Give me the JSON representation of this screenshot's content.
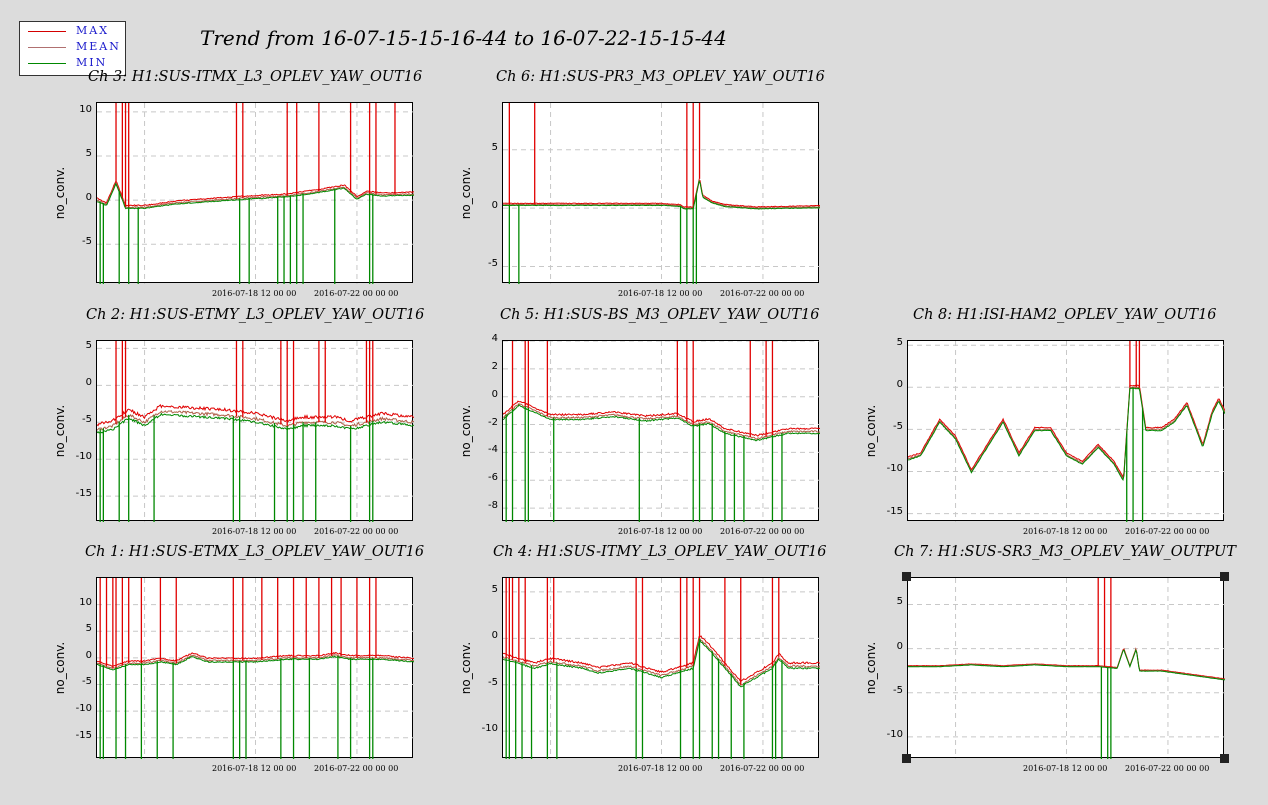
{
  "main_title": "Trend from 16-07-15-15-16-44 to 16-07-22-15-15-44",
  "legend": [
    {
      "label": "MAX",
      "color": "#d40000"
    },
    {
      "label": "MEAN",
      "color": "#a05a5a"
    },
    {
      "label": "MIN",
      "color": "#008800"
    }
  ],
  "colors": {
    "max": "#e00000",
    "mean": "#b0604a",
    "min": "#008800",
    "grid": "#c8c8c8"
  },
  "chart_data": [
    {
      "type": "line",
      "title": "Ch 3: H1:SUS-ITMX_L3_OPLEV_YAW_OUT16",
      "ylabel": "no_conv.",
      "yticks": [
        10,
        5,
        0,
        -5
      ],
      "ylim": [
        -9.5,
        11
      ],
      "xticks": [
        "2016-07-18 12 00 00",
        "2016-07-22 00 00 00"
      ],
      "series": [
        {
          "name": "MAX"
        },
        {
          "name": "MEAN"
        },
        {
          "name": "MIN"
        }
      ],
      "trend": [
        [
          0,
          0
        ],
        [
          0.03,
          -0.5
        ],
        [
          0.06,
          2
        ],
        [
          0.09,
          -0.8
        ],
        [
          0.15,
          -0.8
        ],
        [
          0.25,
          -0.3
        ],
        [
          0.45,
          0.2
        ],
        [
          0.6,
          0.5
        ],
        [
          0.7,
          1
        ],
        [
          0.78,
          1.5
        ],
        [
          0.82,
          0.2
        ],
        [
          0.85,
          0.8
        ],
        [
          0.9,
          0.6
        ],
        [
          1,
          0.7
        ]
      ],
      "spikes_max": [
        0.06,
        0.08,
        0.09,
        0.1,
        0.44,
        0.46,
        0.6,
        0.63,
        0.7,
        0.8,
        0.86,
        0.88,
        0.94
      ],
      "spikes_min": [
        0.01,
        0.02,
        0.07,
        0.1,
        0.13,
        0.45,
        0.48,
        0.57,
        0.59,
        0.61,
        0.63,
        0.65,
        0.75,
        0.86,
        0.87
      ],
      "band": 0.3
    },
    {
      "type": "line",
      "title": "Ch 6: H1:SUS-PR3_M3_OPLEV_YAW_OUT16",
      "ylabel": "no_conv.",
      "yticks": [
        5,
        0,
        -5
      ],
      "ylim": [
        -6.5,
        9
      ],
      "xticks": [
        "2016-07-18 12 00 00",
        "2016-07-22 00 00 00"
      ],
      "series": [
        {
          "name": "MAX"
        },
        {
          "name": "MEAN"
        },
        {
          "name": "MIN"
        }
      ],
      "trend": [
        [
          0,
          0.3
        ],
        [
          0.1,
          0.3
        ],
        [
          0.3,
          0.3
        ],
        [
          0.5,
          0.3
        ],
        [
          0.56,
          0.2
        ],
        [
          0.57,
          0
        ],
        [
          0.6,
          0
        ],
        [
          0.62,
          2.5
        ],
        [
          0.63,
          1
        ],
        [
          0.66,
          0.5
        ],
        [
          0.7,
          0.2
        ],
        [
          0.8,
          0
        ],
        [
          1,
          0.1
        ]
      ],
      "spikes_max": [
        0.02,
        0.1,
        0.58,
        0.6,
        0.62
      ],
      "spikes_min": [
        0.02,
        0.05,
        0.56,
        0.58,
        0.6,
        0.61
      ],
      "band": 0.15
    },
    {
      "type": "line",
      "title": "Ch 2: H1:SUS-ETMY_L3_OPLEV_YAW_OUT16",
      "ylabel": "no_conv.",
      "yticks": [
        5,
        0,
        -5,
        -10,
        -15
      ],
      "ylim": [
        -18.5,
        6
      ],
      "xticks": [
        "2016-07-18 12 00 00",
        "2016-07-22 00 00 00"
      ],
      "series": [
        {
          "name": "MAX"
        },
        {
          "name": "MEAN"
        },
        {
          "name": "MIN"
        }
      ],
      "trend": [
        [
          0,
          -6
        ],
        [
          0.05,
          -5.5
        ],
        [
          0.1,
          -4
        ],
        [
          0.15,
          -5
        ],
        [
          0.2,
          -3.5
        ],
        [
          0.4,
          -4
        ],
        [
          0.5,
          -4.5
        ],
        [
          0.55,
          -5
        ],
        [
          0.6,
          -5.5
        ],
        [
          0.65,
          -5
        ],
        [
          0.7,
          -5
        ],
        [
          0.75,
          -5
        ],
        [
          0.8,
          -5.5
        ],
        [
          0.85,
          -5
        ],
        [
          0.9,
          -4.5
        ],
        [
          1,
          -5
        ]
      ],
      "spikes_max": [
        0.06,
        0.08,
        0.09,
        0.44,
        0.46,
        0.58,
        0.6,
        0.62,
        0.7,
        0.72,
        0.85,
        0.86,
        0.87
      ],
      "spikes_min": [
        0.01,
        0.02,
        0.07,
        0.1,
        0.18,
        0.43,
        0.45,
        0.56,
        0.6,
        0.62,
        0.65,
        0.69,
        0.8,
        0.86,
        0.87
      ],
      "band": 1.0
    },
    {
      "type": "line",
      "title": "Ch 5: H1:SUS-BS_M3_OPLEV_YAW_OUT16",
      "ylabel": "no_conv.",
      "yticks": [
        4,
        2,
        0,
        -2,
        -4,
        -6,
        -8
      ],
      "ylim": [
        -9,
        4
      ],
      "xticks": [
        "2016-07-18 12 00 00",
        "2016-07-22 00 00 00"
      ],
      "series": [
        {
          "name": "MAX"
        },
        {
          "name": "MEAN"
        },
        {
          "name": "MIN"
        }
      ],
      "trend": [
        [
          0,
          -1.5
        ],
        [
          0.05,
          -0.5
        ],
        [
          0.1,
          -1
        ],
        [
          0.15,
          -1.5
        ],
        [
          0.25,
          -1.5
        ],
        [
          0.35,
          -1.3
        ],
        [
          0.45,
          -1.6
        ],
        [
          0.55,
          -1.4
        ],
        [
          0.6,
          -2
        ],
        [
          0.65,
          -1.8
        ],
        [
          0.7,
          -2.5
        ],
        [
          0.8,
          -3
        ],
        [
          0.9,
          -2.5
        ],
        [
          1,
          -2.5
        ]
      ],
      "spikes_max": [
        0.03,
        0.07,
        0.08,
        0.14,
        0.55,
        0.58,
        0.6,
        0.78,
        0.83,
        0.85
      ],
      "spikes_min": [
        0.01,
        0.03,
        0.07,
        0.08,
        0.16,
        0.43,
        0.6,
        0.62,
        0.66,
        0.7,
        0.73,
        0.76,
        0.85,
        0.88
      ],
      "band": 0.3
    },
    {
      "type": "line",
      "title": "Ch 8: H1:ISI-HAM2_OPLEV_YAW_OUT16",
      "ylabel": "no_conv.",
      "yticks": [
        5,
        0,
        -5,
        -10,
        -15
      ],
      "ylim": [
        -16,
        5.5
      ],
      "xticks": [
        "2016-07-18 12 00 00",
        "2016-07-22 00 00 00"
      ],
      "series": [
        {
          "name": "MAX"
        },
        {
          "name": "MEAN"
        },
        {
          "name": "MIN"
        }
      ],
      "trend": [
        [
          0,
          -8.5
        ],
        [
          0.04,
          -8
        ],
        [
          0.1,
          -4
        ],
        [
          0.15,
          -6
        ],
        [
          0.2,
          -10
        ],
        [
          0.25,
          -7
        ],
        [
          0.3,
          -4
        ],
        [
          0.35,
          -8
        ],
        [
          0.4,
          -5
        ],
        [
          0.45,
          -5
        ],
        [
          0.5,
          -8
        ],
        [
          0.55,
          -9
        ],
        [
          0.6,
          -7
        ],
        [
          0.65,
          -9
        ],
        [
          0.68,
          -11
        ],
        [
          0.7,
          0
        ],
        [
          0.73,
          0
        ],
        [
          0.75,
          -5
        ],
        [
          0.8,
          -5
        ],
        [
          0.84,
          -4
        ],
        [
          0.88,
          -2
        ],
        [
          0.93,
          -7
        ],
        [
          0.96,
          -3
        ],
        [
          0.98,
          -1.5
        ],
        [
          1,
          -3
        ]
      ],
      "spikes_max": [
        0.7,
        0.72,
        0.73
      ],
      "spikes_min": [
        0.69,
        0.71,
        0.74
      ],
      "band": 0.3
    },
    {
      "type": "line",
      "title": "Ch 1: H1:SUS-ETMX_L3_OPLEV_YAW_OUT16",
      "ylabel": "no_conv.",
      "yticks": [
        10,
        5,
        0,
        -5,
        -10,
        -15
      ],
      "ylim": [
        -19,
        15
      ],
      "xticks": [
        "2016-07-18 12 00 00",
        "2016-07-22 00 00 00"
      ],
      "series": [
        {
          "name": "MAX"
        },
        {
          "name": "MEAN"
        },
        {
          "name": "MIN"
        }
      ],
      "trend": [
        [
          0,
          -1
        ],
        [
          0.05,
          -2
        ],
        [
          0.1,
          -1
        ],
        [
          0.15,
          -1
        ],
        [
          0.2,
          -0.5
        ],
        [
          0.25,
          -1
        ],
        [
          0.3,
          0.5
        ],
        [
          0.35,
          -0.5
        ],
        [
          0.4,
          -0.5
        ],
        [
          0.5,
          -0.5
        ],
        [
          0.6,
          0
        ],
        [
          0.7,
          0
        ],
        [
          0.75,
          0.5
        ],
        [
          0.8,
          0
        ],
        [
          0.9,
          0
        ],
        [
          1,
          -0.5
        ]
      ],
      "spikes_max": [
        0.01,
        0.03,
        0.05,
        0.06,
        0.08,
        0.1,
        0.14,
        0.2,
        0.25,
        0.43,
        0.46,
        0.52,
        0.57,
        0.62,
        0.66,
        0.7,
        0.74,
        0.77,
        0.82,
        0.86,
        0.88
      ],
      "spikes_min": [
        0.01,
        0.02,
        0.06,
        0.09,
        0.14,
        0.19,
        0.24,
        0.43,
        0.45,
        0.47,
        0.58,
        0.62,
        0.67,
        0.76,
        0.8,
        0.86,
        0.87
      ],
      "band": 0.6
    },
    {
      "type": "line",
      "title": "Ch 4: H1:SUS-ITMY_L3_OPLEV_YAW_OUT16",
      "ylabel": "no_conv.",
      "yticks": [
        5,
        0,
        -5,
        -10
      ],
      "ylim": [
        -13,
        6.5
      ],
      "xticks": [
        "2016-07-18 12 00 00",
        "2016-07-22 00 00 00"
      ],
      "series": [
        {
          "name": "MAX"
        },
        {
          "name": "MEAN"
        },
        {
          "name": "MIN"
        }
      ],
      "trend": [
        [
          0,
          -2
        ],
        [
          0.05,
          -2.5
        ],
        [
          0.1,
          -3
        ],
        [
          0.15,
          -2.5
        ],
        [
          0.25,
          -3
        ],
        [
          0.3,
          -3.5
        ],
        [
          0.4,
          -3
        ],
        [
          0.5,
          -4
        ],
        [
          0.55,
          -3.5
        ],
        [
          0.6,
          -3
        ],
        [
          0.62,
          0
        ],
        [
          0.65,
          -1
        ],
        [
          0.7,
          -3
        ],
        [
          0.75,
          -5
        ],
        [
          0.8,
          -4
        ],
        [
          0.85,
          -3
        ],
        [
          0.87,
          -2
        ],
        [
          0.9,
          -3
        ],
        [
          1,
          -3
        ]
      ],
      "spikes_max": [
        0.01,
        0.02,
        0.03,
        0.05,
        0.07,
        0.14,
        0.16,
        0.42,
        0.44,
        0.56,
        0.58,
        0.6,
        0.62,
        0.7,
        0.75,
        0.85,
        0.87
      ],
      "spikes_min": [
        0.01,
        0.02,
        0.04,
        0.06,
        0.09,
        0.14,
        0.17,
        0.42,
        0.44,
        0.56,
        0.6,
        0.62,
        0.66,
        0.68,
        0.72,
        0.76,
        0.85,
        0.86,
        0.88
      ],
      "band": 0.5
    },
    {
      "type": "line",
      "title": "Ch 7: H1:SUS-SR3_M3_OPLEV_YAW_OUTPUT",
      "ylabel": "no_conv.",
      "yticks": [
        5,
        0,
        -5,
        -10
      ],
      "ylim": [
        -12.5,
        8
      ],
      "xticks": [
        "2016-07-18 12 00 00",
        "2016-07-22 00 00 00"
      ],
      "series": [
        {
          "name": "MAX"
        },
        {
          "name": "MEAN"
        },
        {
          "name": "MIN"
        }
      ],
      "trend": [
        [
          0,
          -2
        ],
        [
          0.1,
          -2
        ],
        [
          0.2,
          -1.8
        ],
        [
          0.3,
          -2
        ],
        [
          0.4,
          -1.8
        ],
        [
          0.5,
          -2
        ],
        [
          0.6,
          -2
        ],
        [
          0.66,
          -2.2
        ],
        [
          0.68,
          0
        ],
        [
          0.7,
          -2
        ],
        [
          0.72,
          0
        ],
        [
          0.73,
          -2.5
        ],
        [
          0.8,
          -2.5
        ],
        [
          0.9,
          -3
        ],
        [
          1,
          -3.5
        ]
      ],
      "spikes_max": [
        0.6,
        0.62,
        0.64
      ],
      "spikes_min": [
        0.61,
        0.63,
        0.64
      ],
      "band": 0.1
    }
  ]
}
